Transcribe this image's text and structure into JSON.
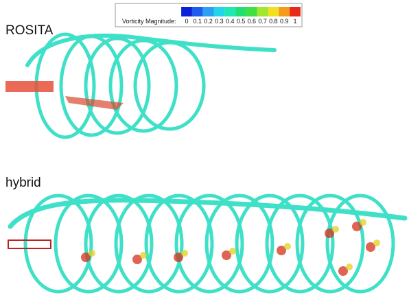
{
  "panels": [
    {
      "label": "ROSITA"
    },
    {
      "label": "hybrid"
    }
  ],
  "colorbar": {
    "title": "Vorticity Magnitude:",
    "ticks": [
      0,
      0.1,
      0.2,
      0.3,
      0.4,
      0.5,
      0.6,
      0.7,
      0.8,
      0.9,
      1
    ],
    "colors": [
      "#0a1fd8",
      "#1e5cf0",
      "#2aa0f5",
      "#22d6e8",
      "#20e8b4",
      "#22e070",
      "#40e040",
      "#a0e830",
      "#f0e020",
      "#f59a1a",
      "#e82a18"
    ]
  }
}
